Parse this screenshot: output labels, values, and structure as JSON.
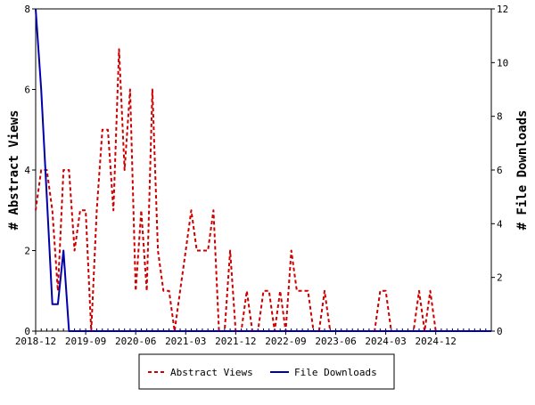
{
  "chart_data": {
    "type": "line",
    "x_unit": "month",
    "xlim": [
      "2018-12",
      "2025-10"
    ],
    "x_tick_labels": [
      "2018-12",
      "2019-09",
      "2020-06",
      "2021-03",
      "2021-12",
      "2022-09",
      "2023-06",
      "2024-03",
      "2024-12"
    ],
    "y_left": {
      "label": "# Abstract Views",
      "ylim": [
        0,
        8
      ],
      "ticks": [
        "0",
        "2",
        "4",
        "6",
        "8"
      ]
    },
    "y_right": {
      "label": "# File Downloads",
      "ylim": [
        0,
        12
      ],
      "ticks": [
        "0",
        "2",
        "4",
        "6",
        "8",
        "10",
        "12"
      ]
    },
    "grid": false,
    "legend_position": "bottom",
    "series": [
      {
        "name": "Abstract Views",
        "axis": "left",
        "color": "#cc0000",
        "style": "dashed",
        "x": [
          "2018-12",
          "2019-01",
          "2019-02",
          "2019-03",
          "2019-04",
          "2019-05",
          "2019-06",
          "2019-07",
          "2019-08",
          "2019-09",
          "2019-10",
          "2019-11",
          "2019-12",
          "2020-01",
          "2020-02",
          "2020-03",
          "2020-04",
          "2020-05",
          "2020-06",
          "2020-07",
          "2020-08",
          "2020-09",
          "2020-10",
          "2020-11",
          "2020-12",
          "2021-01",
          "2021-02",
          "2021-03",
          "2021-04",
          "2021-05",
          "2021-06",
          "2021-07",
          "2021-08",
          "2021-09",
          "2021-10",
          "2021-11",
          "2021-12",
          "2022-01",
          "2022-02",
          "2022-03",
          "2022-04",
          "2022-05",
          "2022-06",
          "2022-07",
          "2022-08",
          "2022-09",
          "2022-10",
          "2022-11",
          "2022-12",
          "2023-01",
          "2023-02",
          "2023-03",
          "2023-04",
          "2023-05",
          "2023-06",
          "2023-07",
          "2023-08",
          "2023-09",
          "2023-10",
          "2023-11",
          "2023-12",
          "2024-01",
          "2024-02",
          "2024-03",
          "2024-04",
          "2024-05",
          "2024-06",
          "2024-07",
          "2024-08",
          "2024-09",
          "2024-10",
          "2024-11",
          "2024-12",
          "2025-01",
          "2025-02",
          "2025-03",
          "2025-04",
          "2025-05",
          "2025-06",
          "2025-07",
          "2025-08",
          "2025-09",
          "2025-10"
        ],
        "values": [
          3,
          4,
          4,
          3,
          1,
          4,
          4,
          2,
          3,
          3,
          0,
          3,
          5,
          5,
          3,
          7,
          4,
          6,
          1,
          3,
          1,
          6,
          2,
          1,
          1,
          0,
          1,
          2,
          3,
          2,
          2,
          2,
          3,
          0,
          0,
          2,
          0,
          0,
          1,
          0,
          0,
          1,
          1,
          0,
          1,
          0,
          2,
          1,
          1,
          1,
          0,
          0,
          1,
          0,
          0,
          0,
          0,
          0,
          0,
          0,
          0,
          0,
          1,
          1,
          0,
          0,
          0,
          0,
          0,
          1,
          0,
          1,
          0,
          0,
          0,
          0,
          0,
          0,
          0,
          0,
          0,
          0,
          0
        ]
      },
      {
        "name": "File Downloads",
        "axis": "right",
        "color": "#0000aa",
        "style": "solid",
        "x": [
          "2018-12",
          "2019-01",
          "2019-02",
          "2019-03",
          "2019-04",
          "2019-05",
          "2019-06",
          "2019-07",
          "2019-08",
          "2019-09",
          "2019-10",
          "2019-11",
          "2019-12",
          "2020-01",
          "2020-02",
          "2020-03",
          "2020-04",
          "2020-05",
          "2020-06",
          "2020-07",
          "2020-08",
          "2020-09",
          "2020-10",
          "2020-11",
          "2020-12",
          "2021-01",
          "2021-02",
          "2021-03",
          "2021-04",
          "2021-05",
          "2021-06",
          "2021-07",
          "2021-08",
          "2021-09",
          "2021-10",
          "2021-11",
          "2021-12",
          "2022-01",
          "2022-02",
          "2022-03",
          "2022-04",
          "2022-05",
          "2022-06",
          "2022-07",
          "2022-08",
          "2022-09",
          "2022-10",
          "2022-11",
          "2022-12",
          "2023-01",
          "2023-02",
          "2023-03",
          "2023-04",
          "2023-05",
          "2023-06",
          "2023-07",
          "2023-08",
          "2023-09",
          "2023-10",
          "2023-11",
          "2023-12",
          "2024-01",
          "2024-02",
          "2024-03",
          "2024-04",
          "2024-05",
          "2024-06",
          "2024-07",
          "2024-08",
          "2024-09",
          "2024-10",
          "2024-11",
          "2024-12",
          "2025-01",
          "2025-02",
          "2025-03",
          "2025-04",
          "2025-05",
          "2025-06",
          "2025-07",
          "2025-08",
          "2025-09",
          "2025-10"
        ],
        "values": [
          12,
          9,
          5,
          1,
          1,
          3,
          0,
          0,
          0,
          0,
          0,
          0,
          0,
          0,
          0,
          0,
          0,
          0,
          0,
          0,
          0,
          0,
          0,
          0,
          0,
          0,
          0,
          0,
          0,
          0,
          0,
          0,
          0,
          0,
          0,
          0,
          0,
          0,
          0,
          0,
          0,
          0,
          0,
          0,
          0,
          0,
          0,
          0,
          0,
          0,
          0,
          0,
          0,
          0,
          0,
          0,
          0,
          0,
          0,
          0,
          0,
          0,
          0,
          0,
          0,
          0,
          0,
          0,
          0,
          0,
          0,
          0,
          0,
          0,
          0,
          0,
          0,
          0,
          0,
          0,
          0,
          0,
          0
        ]
      }
    ]
  }
}
